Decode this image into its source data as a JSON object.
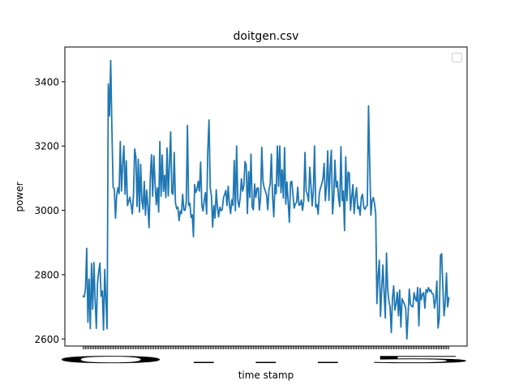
{
  "chart_data": {
    "type": "line",
    "title": "doitgen.csv",
    "xlabel": "time stamp",
    "ylabel": "power",
    "ylim": [
      2578,
      3508
    ],
    "yticks": [
      2600,
      2800,
      3000,
      3200,
      3400
    ],
    "x_tick_labels_overlapping": "0...5",
    "legend": {
      "placement": "upper right",
      "entries": []
    },
    "grid": false,
    "line_color": "#1f77b4",
    "series": [
      {
        "values": [
          2733,
          2731,
          2758,
          2882,
          2652,
          2786,
          2632,
          2835,
          2693,
          2838,
          2722,
          2633,
          2774,
          2809,
          2836,
          2733,
          2749,
          2628,
          2816,
          2720,
          2632,
          3393,
          3294,
          3466,
          3254,
          3072,
          3067,
          2976,
          3048,
          3070,
          3052,
          3214,
          3060,
          3142,
          3200,
          3050,
          3154,
          3015,
          3028,
          3041,
          3018,
          2989,
          3048,
          3191,
          3167,
          3012,
          3159,
          2995,
          3143,
          3030,
          3004,
          3090,
          2985,
          3063,
          3013,
          2946,
          3102,
          3173,
          3044,
          3170,
          3084,
          3018,
          3070,
          2995,
          3214,
          3044,
          3172,
          3059,
          3109,
          3040,
          3194,
          3045,
          3144,
          3244,
          3056,
          3050,
          3180,
          3024,
          3005,
          3010,
          2968,
          2998,
          2990,
          3050,
          3001,
          3000,
          3025,
          3264,
          3015,
          3022,
          2978,
          2986,
          2918,
          3080,
          3056,
          3064,
          3090,
          3060,
          3150,
          3015,
          2998,
          3030,
          3055,
          2989,
          3190,
          3281,
          3070,
          3046,
          2948,
          3015,
          2976,
          3064,
          3010,
          2980,
          3010,
          2999,
          3002,
          3038,
          3050,
          3062,
          3015,
          3075,
          3018,
          2990,
          3033,
          3015,
          3155,
          2999,
          3200,
          3032,
          3010,
          3040,
          3098,
          3060,
          3076,
          3152,
          3140,
          2990,
          3120,
          3040,
          3175,
          3010,
          3002,
          3082,
          3040,
          3068,
          3070,
          3001,
          3040,
          3196,
          3090,
          3070,
          3060,
          3047,
          3002,
          3065,
          3081,
          3175,
          3042,
          2980,
          3080,
          3052,
          3200,
          3075,
          3200,
          3055,
          3126,
          3038,
          3195,
          3019,
          3088,
          3026,
          2963,
          3088,
          3090,
          3048,
          3007,
          3020,
          3025,
          3072,
          3016,
          3018,
          3032,
          3000,
          3030,
          3180,
          3060,
          3050,
          3028,
          3134,
          3078,
          3014,
          3060,
          3200,
          3010,
          3018,
          2988,
          3054,
          3070,
          3082,
          3098,
          3146,
          3030,
          3078,
          3185,
          3031,
          3130,
          3187,
          2989,
          3040,
          3156,
          3072,
          3090,
          3040,
          3012,
          3198,
          3030,
          3060,
          2937,
          3166,
          3030,
          3119,
          3115,
          3000,
          3042,
          3080,
          2990,
          3040,
          3070,
          3005,
          3012,
          2985,
          3040,
          3050,
          3010,
          3003,
          3012,
          3016,
          3325,
          3145,
          2985,
          3030,
          3040,
          3022,
          2990,
          2710,
          2795,
          2845,
          2670,
          2755,
          2830,
          2745,
          2665,
          2867,
          2755,
          2717,
          2700,
          2620,
          2728,
          2765,
          2690,
          2710,
          2745,
          2672,
          2752,
          2637,
          2725,
          2716,
          2708,
          2696,
          2600,
          2673,
          2755,
          2707,
          2702,
          2700,
          2744,
          2726,
          2717,
          2760,
          2641,
          2757,
          2722,
          2739,
          2744,
          2696,
          2754,
          2745,
          2760,
          2748,
          2752,
          2741,
          2740,
          2696,
          2722,
          2780,
          2634,
          2663,
          2860,
          2865,
          2760,
          2672,
          2712,
          2805,
          2700,
          2728
        ]
      }
    ]
  }
}
